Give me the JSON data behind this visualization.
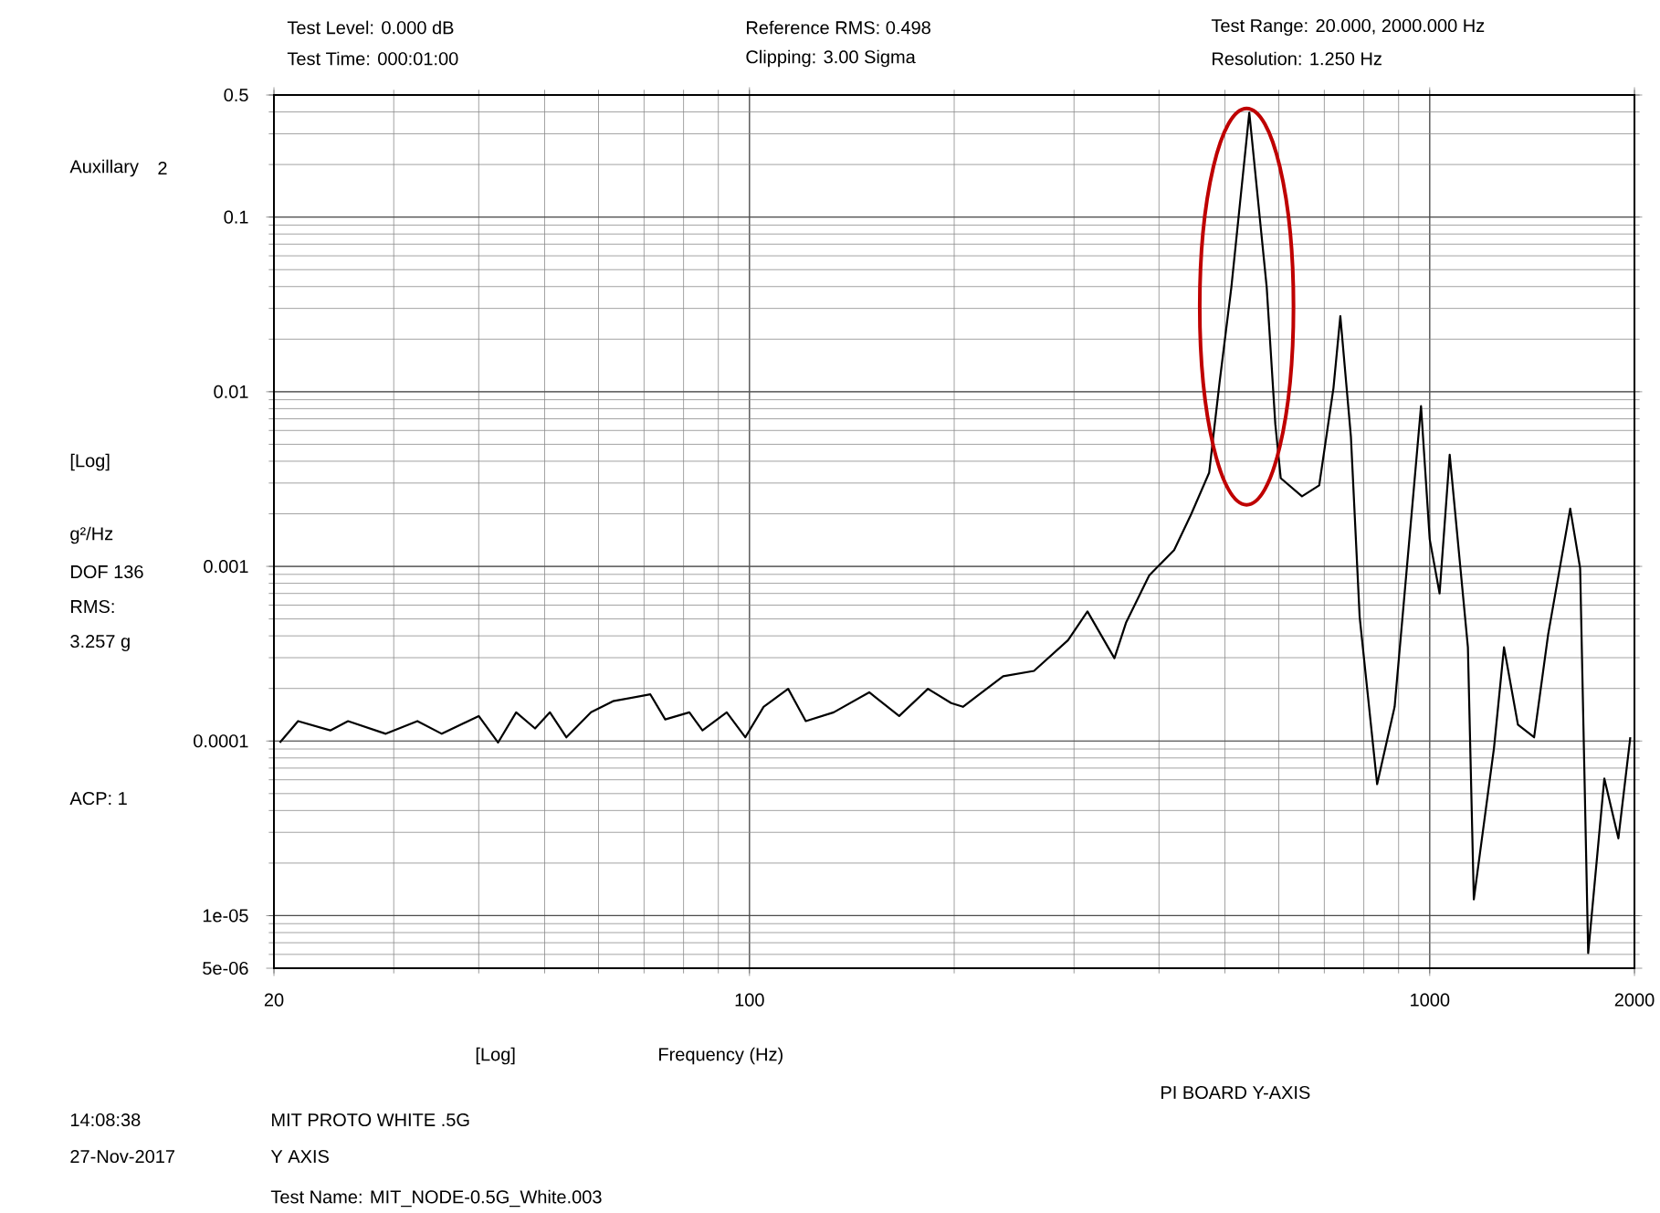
{
  "chart_data": {
    "type": "line",
    "xlabel": "Frequency (Hz)",
    "ylabel": "g²/Hz",
    "log": "xy",
    "grid": true,
    "marker": "none",
    "line_style": "solid",
    "xlim": [
      20,
      2000
    ],
    "ylim": [
      5e-06,
      0.5
    ],
    "xticks": [
      20,
      100,
      1000,
      2000
    ],
    "yticks": [
      {
        "value": 5e-06,
        "label": "5e-06"
      },
      {
        "value": 1e-05,
        "label": "1e-05"
      },
      0.0001,
      0.001,
      0.01,
      0.1,
      0.5
    ],
    "annotations": [
      "Test Level: 0.000 dB",
      "Test Time: 000:01:00",
      "Reference RMS: 0.498",
      "Clipping: 3.00 Sigma",
      "Test Range: 20.000, 2000.000 Hz",
      "Resolution: 1.250 Hz",
      "Auxillary",
      "2",
      "[Log]",
      "DOF 136",
      "RMS:",
      "3.257 g",
      "ACP: 1",
      "[Log]",
      "PI BOARD Y-AXIS",
      "14:08:38",
      "27-Nov-2017",
      "MIT PROTO WHITE .5G",
      "Y  AXIS",
      "Test Name: MIT_NODE-0.5G_White.003"
    ],
    "series": [
      {
        "color": "#000000",
        "x": [
          20.4,
          21.7,
          24.2,
          25.7,
          29.2,
          32.5,
          35.3,
          40.0,
          42.7,
          45.4,
          48.4,
          50.9,
          53.8,
          58.5,
          63.0,
          71.5,
          75.2,
          81.6,
          85.3,
          92.6,
          98.6,
          104.9,
          114,
          121,
          133,
          150,
          166,
          183,
          198,
          206,
          236,
          262,
          294,
          314,
          344,
          358,
          387,
          421,
          446,
          474,
          491,
          511,
          543,
          576,
          593,
          604,
          649,
          688,
          722,
          739,
          766,
          789,
          837,
          888,
          942,
          971,
          1000,
          1034,
          1070,
          1138,
          1161,
          1243,
          1286,
          1348,
          1424,
          1493,
          1609,
          1664,
          1710,
          1806,
          1894,
          1972
        ],
        "values": [
          9.8e-05,
          0.00013,
          0.000115,
          0.00013,
          0.00011,
          0.00013,
          0.00011,
          0.000139,
          9.8e-05,
          0.000146,
          0.000118,
          0.000146,
          0.000105,
          0.000146,
          0.000169,
          0.000185,
          0.000133,
          0.000146,
          0.000115,
          0.000146,
          0.000105,
          0.000157,
          0.000199,
          0.00013,
          0.000146,
          0.00019,
          0.000139,
          0.000199,
          0.000165,
          0.000157,
          0.000235,
          0.000252,
          0.000378,
          0.000552,
          0.000298,
          0.000479,
          0.000888,
          0.00124,
          0.00199,
          0.00344,
          0.0113,
          0.0396,
          0.396,
          0.0396,
          0.00652,
          0.0032,
          0.00252,
          0.00291,
          0.0105,
          0.0271,
          0.00552,
          0.000514,
          5.66e-05,
          0.000157,
          0.00214,
          0.00827,
          0.00143,
          0.0007,
          0.00436,
          0.000344,
          1.24e-05,
          9.1e-05,
          0.000344,
          0.000124,
          0.000105,
          0.000406,
          0.00214,
          0.000977,
          6.1e-06,
          6.1e-05,
          2.77e-05,
          0.000105
        ]
      }
    ]
  }
}
